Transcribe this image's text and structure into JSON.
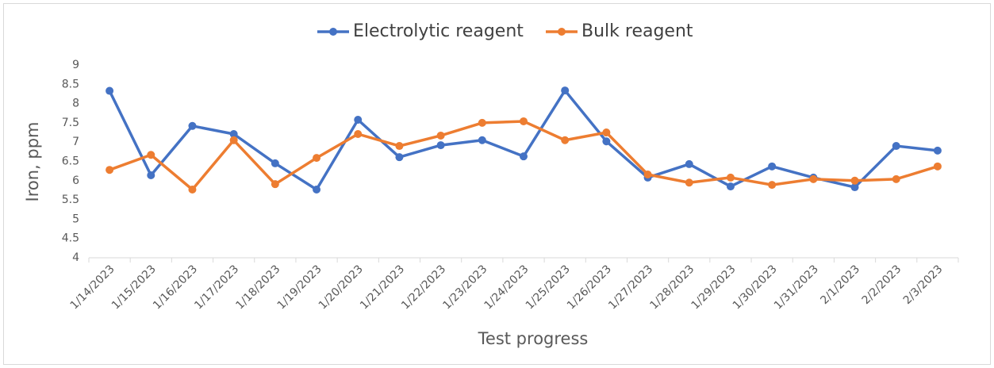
{
  "chart_data": {
    "type": "line",
    "x_label": "Test progress",
    "y_label": "Iron, ppm",
    "categories": [
      "1/14/2023",
      "1/15/2023",
      "1/16/2023",
      "1/17/2023",
      "1/18/2023",
      "1/19/2023",
      "1/20/2023",
      "1/21/2023",
      "1/22/2023",
      "1/23/2023",
      "1/24/2023",
      "1/25/2023",
      "1/26/2023",
      "1/27/2023",
      "1/28/2023",
      "1/29/2023",
      "1/30/2023",
      "1/31/2023",
      "2/1/2023",
      "2/2/2023",
      "2/3/2023"
    ],
    "series": [
      {
        "name": "Electrolytic reagent",
        "color": "#4472c4",
        "values": [
          8.33,
          6.14,
          7.42,
          7.21,
          6.45,
          5.77,
          7.58,
          6.61,
          6.92,
          7.05,
          6.63,
          8.34,
          7.02,
          6.08,
          6.43,
          5.85,
          6.37,
          6.08,
          5.83,
          6.9,
          6.78
        ]
      },
      {
        "name": "Bulk reagent",
        "color": "#ed7d31",
        "values": [
          6.28,
          6.67,
          5.77,
          7.05,
          5.91,
          6.59,
          7.21,
          6.9,
          7.17,
          7.5,
          7.54,
          7.05,
          7.25,
          6.16,
          5.95,
          6.08,
          5.89,
          6.04,
          6.0,
          6.04,
          6.37
        ]
      }
    ],
    "ylim": [
      4,
      9
    ],
    "yticks": [
      4,
      4.5,
      5,
      5.5,
      6,
      6.5,
      7,
      7.5,
      8,
      8.5,
      9
    ],
    "grid": false,
    "legend": "top"
  }
}
